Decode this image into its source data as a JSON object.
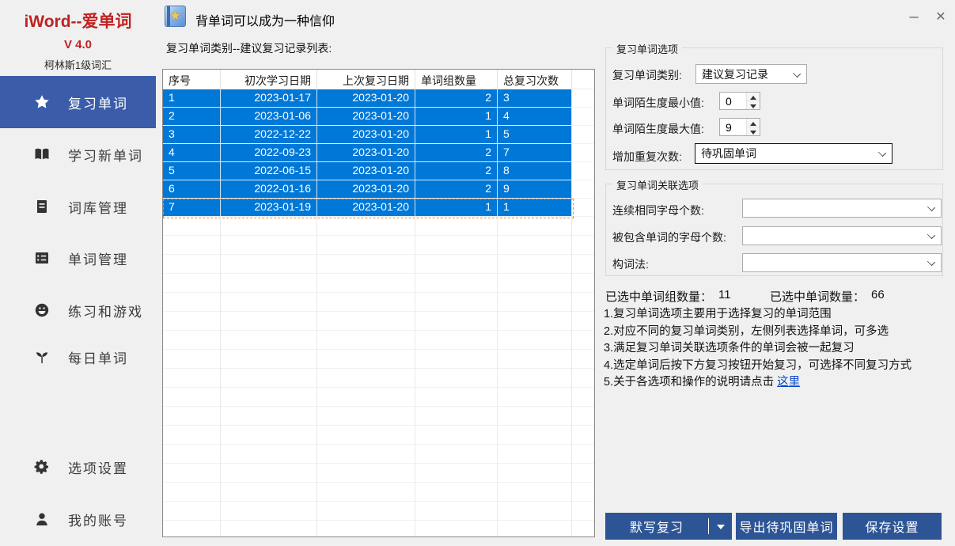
{
  "brand": {
    "title": "iWord--爱单词",
    "version": "V 4.0",
    "subtitle": "柯林斯1级词汇"
  },
  "titlebar": {
    "app_icon": "book-star-icon",
    "title": "背单词可以成为一种信仰",
    "minimize_glyph": "–",
    "close_glyph": "✕"
  },
  "sidebar": {
    "items": [
      {
        "icon": "star-icon",
        "label": "复习单词",
        "active": true
      },
      {
        "icon": "open-book-icon",
        "label": "学习新单词",
        "active": false
      },
      {
        "icon": "ledger-icon",
        "label": "词库管理",
        "active": false
      },
      {
        "icon": "list-icon",
        "label": "单词管理",
        "active": false
      },
      {
        "icon": "smiley-icon",
        "label": "练习和游戏",
        "active": false
      },
      {
        "icon": "sprout-icon",
        "label": "每日单词",
        "active": false
      },
      {
        "icon": "gear-icon",
        "label": "选项设置",
        "active": false
      },
      {
        "icon": "person-icon",
        "label": "我的账号",
        "active": false
      }
    ]
  },
  "review_list": {
    "label": "复习单词类别--建议复习记录列表:",
    "columns": [
      "序号",
      "初次学习日期",
      "上次复习日期",
      "单词组数量",
      "总复习次数"
    ],
    "rows": [
      [
        "1",
        "2023-01-17",
        "2023-01-20",
        "2",
        "3"
      ],
      [
        "2",
        "2023-01-06",
        "2023-01-20",
        "1",
        "4"
      ],
      [
        "3",
        "2022-12-22",
        "2023-01-20",
        "1",
        "5"
      ],
      [
        "4",
        "2022-09-23",
        "2023-01-20",
        "2",
        "7"
      ],
      [
        "5",
        "2022-06-15",
        "2023-01-20",
        "2",
        "8"
      ],
      [
        "6",
        "2022-01-16",
        "2023-01-20",
        "2",
        "9"
      ],
      [
        "7",
        "2023-01-19",
        "2023-01-20",
        "1",
        "1"
      ]
    ],
    "selected_row_indexes": [
      0,
      1,
      2,
      3,
      4,
      5,
      6
    ],
    "focused_row_index": 6
  },
  "options_group": {
    "title": "复习单词选项",
    "category_label": "复习单词类别:",
    "category_value": "建议复习记录",
    "min_unfamiliarity_label": "单词陌生度最小值:",
    "min_unfamiliarity_value": "0",
    "max_unfamiliarity_label": "单词陌生度最大值:",
    "max_unfamiliarity_value": "9",
    "repeat_label": "增加重复次数:",
    "repeat_value": "待巩固单词"
  },
  "relation_group": {
    "title": "复习单词关联选项",
    "same_letters_label": "连续相同字母个数:",
    "same_letters_value": "",
    "contained_letters_label": "被包含单词的字母个数:",
    "contained_letters_value": "",
    "word_formation_label": "构词法:",
    "word_formation_value": ""
  },
  "stats": {
    "selected_groups_label": "已选中单词组数量：",
    "selected_groups_value": "11",
    "selected_words_label": "已选中单词数量：",
    "selected_words_value": "66"
  },
  "instructions": [
    {
      "text": "1.复习单词选项主要用于选择复习的单词范围"
    },
    {
      "text": "2.对应不同的复习单词类别，左侧列表选择单词，可多选"
    },
    {
      "text": "3.满足复习单词关联选项条件的单词会被一起复习"
    },
    {
      "text": "4.选定单词后按下方复习按钮开始复习，可选择不同复习方式"
    },
    {
      "text": "5.关于各选项和操作的说明请点击 ",
      "link": "这里"
    }
  ],
  "actions": {
    "review_button": "默写复习",
    "export_button": "导出待巩固单词",
    "save_button": "保存设置"
  },
  "colors": {
    "brand_red": "#bf2222",
    "sidebar_active_blue": "#3a5ca9",
    "selection_blue": "#0078d7",
    "button_blue": "#2d5596",
    "link_blue": "#0645c8",
    "window_bg": "#f0f0f0"
  }
}
